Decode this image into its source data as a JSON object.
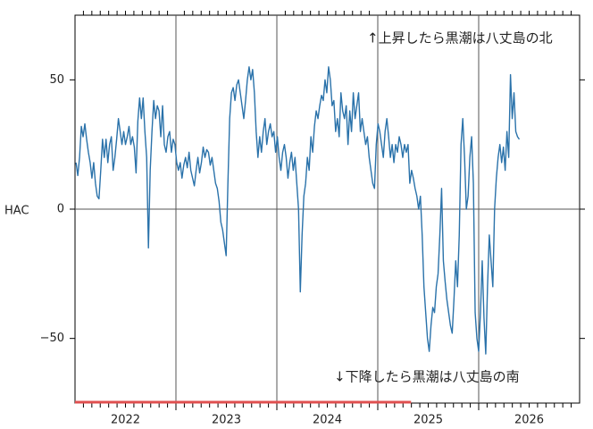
{
  "chart_data": {
    "type": "line",
    "ylabel": "HAC",
    "annotations": [
      "↑上昇したら黒潮は八丈島の北",
      "↓下降したら黒潮は八丈島の南"
    ],
    "xlim": [
      2022,
      2027
    ],
    "xticks": [
      2023,
      2024,
      2025,
      2026
    ],
    "x_labels": [
      "2022",
      "2023",
      "2024",
      "2025",
      "2026"
    ],
    "minor_ticks_per_year": 12,
    "ylim": [
      -75,
      75
    ],
    "yticks": [
      50,
      0,
      {
        "value": -50,
        "label": "−50"
      }
    ],
    "zero_line": true,
    "highlight": {
      "x": [
        2022,
        2025.33
      ],
      "color": "#e05050"
    },
    "series": [
      {
        "color": "#2a72aa",
        "x": [
          2022.01,
          2022.0275,
          2022.045,
          2022.0625,
          2022.08,
          2022.0975,
          2022.115,
          2022.1325,
          2022.15,
          2022.1675,
          2022.185,
          2022.2025,
          2022.22,
          2022.2375,
          2022.255,
          2022.2725,
          2022.29,
          2022.3075,
          2022.325,
          2022.3425,
          2022.36,
          2022.3775,
          2022.395,
          2022.4125,
          2022.43,
          2022.4475,
          2022.465,
          2022.4825,
          2022.5,
          2022.5175,
          2022.535,
          2022.5525,
          2022.57,
          2022.5875,
          2022.605,
          2022.6225,
          2022.64,
          2022.6575,
          2022.675,
          2022.6925,
          2022.71,
          2022.7275,
          2022.745,
          2022.7625,
          2022.78,
          2022.7975,
          2022.815,
          2022.8325,
          2022.85,
          2022.8675,
          2022.885,
          2022.9025,
          2022.92,
          2022.9375,
          2022.955,
          2022.9725,
          2022.99,
          2023.0075,
          2023.025,
          2023.0425,
          2023.06,
          2023.0775,
          2023.095,
          2023.1125,
          2023.13,
          2023.1475,
          2023.165,
          2023.1825,
          2023.2,
          2023.2175,
          2023.235,
          2023.2525,
          2023.27,
          2023.2875,
          2023.305,
          2023.3225,
          2023.34,
          2023.3575,
          2023.375,
          2023.3925,
          2023.41,
          2023.4275,
          2023.445,
          2023.4625,
          2023.48,
          2023.4975,
          2023.515,
          2023.5325,
          2023.55,
          2023.5675,
          2023.585,
          2023.6025,
          2023.62,
          2023.6375,
          2023.655,
          2023.6725,
          2023.69,
          2023.7075,
          2023.725,
          2023.7425,
          2023.76,
          2023.7775,
          2023.795,
          2023.8125,
          2023.83,
          2023.8475,
          2023.865,
          2023.8825,
          2023.9,
          2023.9175,
          2023.935,
          2023.9525,
          2023.97,
          2023.9875,
          2024.005,
          2024.0225,
          2024.04,
          2024.0575,
          2024.075,
          2024.0925,
          2024.11,
          2024.1275,
          2024.145,
          2024.1625,
          2024.18,
          2024.1975,
          2024.215,
          2024.2325,
          2024.25,
          2024.2675,
          2024.285,
          2024.3025,
          2024.32,
          2024.3375,
          2024.355,
          2024.3725,
          2024.39,
          2024.4075,
          2024.425,
          2024.4425,
          2024.46,
          2024.4775,
          2024.495,
          2024.5125,
          2024.53,
          2024.5475,
          2024.565,
          2024.5825,
          2024.6,
          2024.6175,
          2024.635,
          2024.6525,
          2024.67,
          2024.6875,
          2024.705,
          2024.7225,
          2024.74,
          2024.7575,
          2024.775,
          2024.7925,
          2024.81,
          2024.8275,
          2024.845,
          2024.8625,
          2024.88,
          2024.8975,
          2024.915,
          2024.9325,
          2024.95,
          2024.9675,
          2024.985,
          2025.0025,
          2025.02,
          2025.0375,
          2025.055,
          2025.0725,
          2025.09,
          2025.1075,
          2025.125,
          2025.1425,
          2025.16,
          2025.1775,
          2025.195,
          2025.2125,
          2025.23,
          2025.2475,
          2025.265,
          2025.2825,
          2025.3,
          2025.3175,
          2025.335,
          2025.3525,
          2025.37,
          2025.3875,
          2025.405,
          2025.4225,
          2025.44,
          2025.4575,
          2025.475,
          2025.4925,
          2025.51,
          2025.5275,
          2025.545,
          2025.5625,
          2025.58,
          2025.5975,
          2025.615,
          2025.6325,
          2025.65,
          2025.6675,
          2025.685,
          2025.7025,
          2025.72,
          2025.7375,
          2025.755,
          2025.7725,
          2025.79,
          2025.8075,
          2025.825,
          2025.8425,
          2025.86,
          2025.8775,
          2025.895,
          2025.9125,
          2025.93,
          2025.9475,
          2025.965,
          2025.9825,
          2026.0,
          2026.0175,
          2026.035,
          2026.0525,
          2026.07,
          2026.0875,
          2026.105,
          2026.1225,
          2026.14,
          2026.1575,
          2026.175,
          2026.1925,
          2026.21,
          2026.2275,
          2026.245,
          2026.2625,
          2026.28,
          2026.2975,
          2026.315,
          2026.3325,
          2026.35,
          2026.3675,
          2026.385,
          2026.4025
        ],
        "values": [
          18,
          13,
          20,
          32,
          28,
          33,
          27,
          22,
          18,
          12,
          18,
          10,
          5,
          4,
          15,
          27,
          20,
          27,
          18,
          25,
          28,
          15,
          20,
          27,
          35,
          30,
          25,
          30,
          25,
          28,
          32,
          25,
          28,
          24,
          14,
          34,
          43,
          35,
          43,
          30,
          20,
          -15,
          15,
          30,
          42,
          35,
          40,
          38,
          28,
          40,
          25,
          22,
          28,
          30,
          22,
          27,
          25,
          18,
          15,
          18,
          12,
          17,
          20,
          16,
          22,
          15,
          12,
          9,
          15,
          20,
          14,
          18,
          24,
          20,
          23,
          22,
          17,
          20,
          15,
          10,
          8,
          3,
          -5,
          -8,
          -13,
          -18,
          10,
          35,
          45,
          47,
          42,
          48,
          50,
          45,
          40,
          35,
          42,
          50,
          55,
          50,
          54,
          45,
          30,
          20,
          28,
          22,
          30,
          35,
          25,
          30,
          33,
          28,
          30,
          22,
          28,
          20,
          15,
          22,
          25,
          20,
          12,
          18,
          22,
          15,
          20,
          10,
          0,
          -32,
          -10,
          5,
          10,
          20,
          15,
          28,
          22,
          32,
          38,
          35,
          40,
          44,
          42,
          50,
          45,
          55,
          50,
          40,
          42,
          30,
          35,
          28,
          45,
          38,
          35,
          40,
          25,
          38,
          30,
          45,
          35,
          40,
          45,
          30,
          35,
          30,
          25,
          28,
          20,
          15,
          10,
          8,
          25,
          33,
          30,
          25,
          20,
          30,
          35,
          28,
          20,
          25,
          18,
          25,
          22,
          28,
          25,
          20,
          25,
          22,
          25,
          10,
          15,
          12,
          8,
          5,
          0,
          5,
          -10,
          -30,
          -40,
          -50,
          -55,
          -45,
          -38,
          -40,
          -30,
          -25,
          -10,
          8,
          -20,
          -28,
          -35,
          -40,
          -45,
          -48,
          -35,
          -20,
          -30,
          -10,
          25,
          35,
          20,
          0,
          5,
          20,
          28,
          10,
          -40,
          -50,
          -55,
          -40,
          -20,
          -42,
          -56,
          -30,
          -10,
          -20,
          -30,
          0,
          12,
          20,
          25,
          18,
          24,
          15,
          30,
          20,
          52,
          35,
          45,
          30,
          28,
          27
        ]
      }
    ]
  }
}
